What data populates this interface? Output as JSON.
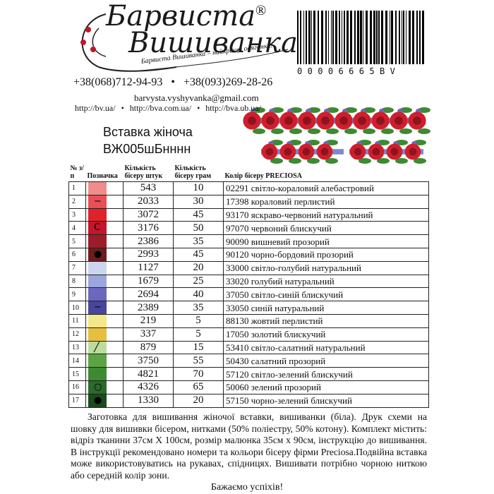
{
  "logo": {
    "brand_line1": "Барвиста",
    "registered": "®",
    "brand_line2": "Вишиванка",
    "slogan": "Барвиста Вишиванка – найкраща одяганка!"
  },
  "barcode": "00006665BV",
  "contacts": {
    "phones": [
      "+38(068)712-94-93",
      "+38(093)269-28-26"
    ],
    "email": "barvysta.vyshyvanka@gmail.com",
    "websites": [
      "http://bv.ua/",
      "http://bva.com.ua/",
      "http://bva.ub.ua/"
    ]
  },
  "product": {
    "title": "Вставка жіноча",
    "code": "ВЖ005шБнннн"
  },
  "table": {
    "headers": [
      "№ з/п",
      "Позначка",
      "Кількість бісеру штук",
      "Кількість бісеру грам",
      "Колір бісеру PRECIOSA"
    ],
    "rows": [
      {
        "number": 1,
        "color": "#f08c8c",
        "count": 543,
        "grams": 10,
        "bead_color": "02291 світло-кораловий алебастровий"
      },
      {
        "number": 2,
        "color": "#e84f57",
        "symbol": "−",
        "count": 2033,
        "grams": 30,
        "bead_color": "17398 кораловий перлистий"
      },
      {
        "number": 3,
        "color": "#e0232b",
        "count": 3072,
        "grams": 45,
        "bead_color": "93170 яскраво-червоний натуральний"
      },
      {
        "number": 4,
        "color": "#c4152c",
        "symbol": "C",
        "count": 3176,
        "grams": 50,
        "bead_color": "97070 червоний блискучий"
      },
      {
        "number": 5,
        "color": "#9c1c2c",
        "count": 2386,
        "grams": 35,
        "bead_color": "90090 вишневий прозорий"
      },
      {
        "number": 6,
        "color": "#6e1b1d",
        "symbol": "●",
        "count": 2993,
        "grams": 45,
        "bead_color": "90120 чорно-бордовий прозорий"
      },
      {
        "number": 7,
        "color": "#cbd5ee",
        "count": 1127,
        "grams": 20,
        "bead_color": "33000 світло-голубий натуральний"
      },
      {
        "number": 8,
        "color": "#9ca5dc",
        "count": 1679,
        "grams": 25,
        "bead_color": "33020 голубий натуральний"
      },
      {
        "number": 9,
        "color": "#6c68bd",
        "count": 2694,
        "grams": 40,
        "bead_color": "37050 світло-синій блискучий"
      },
      {
        "number": 10,
        "color": "#4a459c",
        "symbol": "−",
        "count": 2389,
        "grams": 35,
        "bead_color": "33050 синій натуральний"
      },
      {
        "number": 11,
        "color": "#f3e78a",
        "count": 219,
        "grams": 5,
        "bead_color": "88130 жовтий перлистий"
      },
      {
        "number": 12,
        "color": "#e6bf40",
        "count": 337,
        "grams": 5,
        "bead_color": "17050 золотий блискучий"
      },
      {
        "number": 13,
        "color": "#bcdb9c",
        "symbol": "╱",
        "count": 879,
        "grams": 15,
        "bead_color": "53410 світло-салатний натуральний"
      },
      {
        "number": 14,
        "color": "#5ca443",
        "count": 3750,
        "grams": 55,
        "bead_color": "50430 салатний прозорий"
      },
      {
        "number": 15,
        "color": "#3d8a32",
        "count": 4821,
        "grams": 70,
        "bead_color": "57120 світло-зелений блискучий"
      },
      {
        "number": 16,
        "color": "#2b6a29",
        "symbol": "○",
        "count": 4326,
        "grams": 65,
        "bead_color": "50060 зелений прозорий"
      },
      {
        "number": 17,
        "color": "#1b4a1d",
        "symbol": "●",
        "count": 1330,
        "grams": 20,
        "bead_color": "57150 чорно-зелений блискучий"
      }
    ]
  },
  "description": "Заготовка для вишивання жіночої вставки, вишиванки (біла). Друк схеми на шовку для вишивки бісером, нитками (50% поліестру, 50% котону). Комплект містить: відріз тканини 37см Х 100см, розмір малюнка 35см х 90см, інструкцію до вишивання. В інструкції рекомендовано номери та кольори бісеру фірми Preciosa.Подвійна вставка може використовуватись на рукавах, спідницях. Вишивати потрібно чорною ниткою або середній колір зони.",
  "closing": "Бажаємо успіхів!"
}
